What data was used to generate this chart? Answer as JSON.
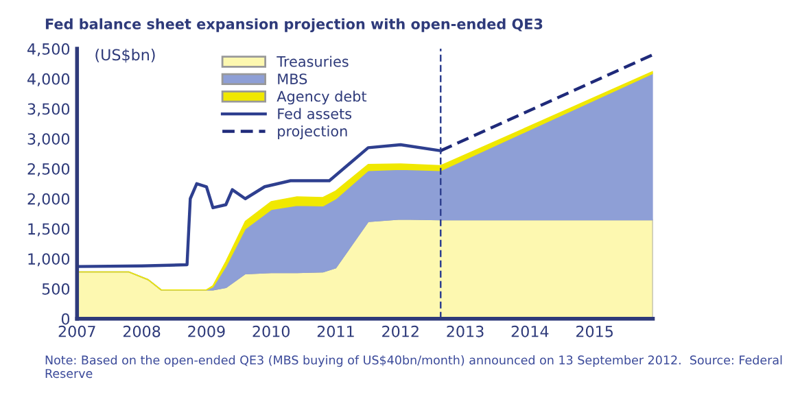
{
  "chart_data": {
    "type": "area",
    "stacked": true,
    "title": "Fed balance sheet expansion projection with open-ended QE3",
    "ylabel": "(US$bn)",
    "x": [
      2007,
      2007.8,
      2008.1,
      2008.3,
      2009.0,
      2009.1,
      2009.3,
      2009.6,
      2010.0,
      2010.4,
      2010.8,
      2011.0,
      2011.5,
      2012.0,
      2012.62,
      2015.9
    ],
    "series": [
      {
        "name": "Treasuries",
        "color": "#fdf8b0",
        "values": [
          780,
          780,
          650,
          480,
          480,
          480,
          520,
          750,
          770,
          770,
          780,
          850,
          1620,
          1660,
          1650,
          1650
        ]
      },
      {
        "name": "MBS",
        "color": "#8e9fd6",
        "values": [
          0,
          0,
          0,
          0,
          0,
          50,
          350,
          750,
          1050,
          1120,
          1100,
          1150,
          850,
          830,
          820,
          2440
        ]
      },
      {
        "name": "Agency debt",
        "color": "#f0e800",
        "values": [
          0,
          0,
          0,
          0,
          0,
          20,
          80,
          120,
          130,
          140,
          140,
          130,
          100,
          90,
          80,
          30
        ]
      },
      {
        "name": "Fed assets",
        "type": "line",
        "color": "#2e3f8f",
        "line_style": "solid",
        "x": [
          2007,
          2008.0,
          2008.7,
          2008.75,
          2008.85,
          2009.0,
          2009.1,
          2009.3,
          2009.4,
          2009.6,
          2009.9,
          2010.3,
          2010.9,
          2011.5,
          2012.0,
          2012.62
        ],
        "values": [
          870,
          880,
          900,
          2000,
          2250,
          2200,
          1850,
          1900,
          2150,
          2000,
          2200,
          2300,
          2300,
          2850,
          2900,
          2800
        ]
      },
      {
        "name": "projection",
        "type": "line",
        "color": "#1f2a7a",
        "line_style": "dashed",
        "x": [
          2012.62,
          2015.9
        ],
        "values": [
          2800,
          4400
        ]
      }
    ],
    "xlim": [
      2007,
      2015.9
    ],
    "xticks": [
      2007,
      2008,
      2009,
      2010,
      2011,
      2012,
      2013,
      2014,
      2015
    ],
    "ylim": [
      0,
      4500
    ],
    "yticks": [
      0,
      500,
      {
        "value": 1000,
        "label": "1,000"
      },
      {
        "value": 1500,
        "label": "1,500"
      },
      {
        "value": 2000,
        "label": "2,000"
      },
      {
        "value": 2500,
        "label": "2,500"
      },
      {
        "value": 3000,
        "label": "3,000"
      },
      {
        "value": 3500,
        "label": "3,500"
      },
      {
        "value": 4000,
        "label": "4,000"
      },
      {
        "value": 4500,
        "label": "4,500"
      }
    ],
    "ref_lines": [
      {
        "axis": "x",
        "value": 2012.62,
        "label": null,
        "color": "#2e3f8f",
        "line_style": "dashed"
      }
    ],
    "grid": false,
    "legend": "top left",
    "annotations": [
      "Note: Based on the open-ended QE3 (MBS buying of US$40bn/month) announced on 13 September 2012.  Source: Federal Reserve"
    ]
  }
}
